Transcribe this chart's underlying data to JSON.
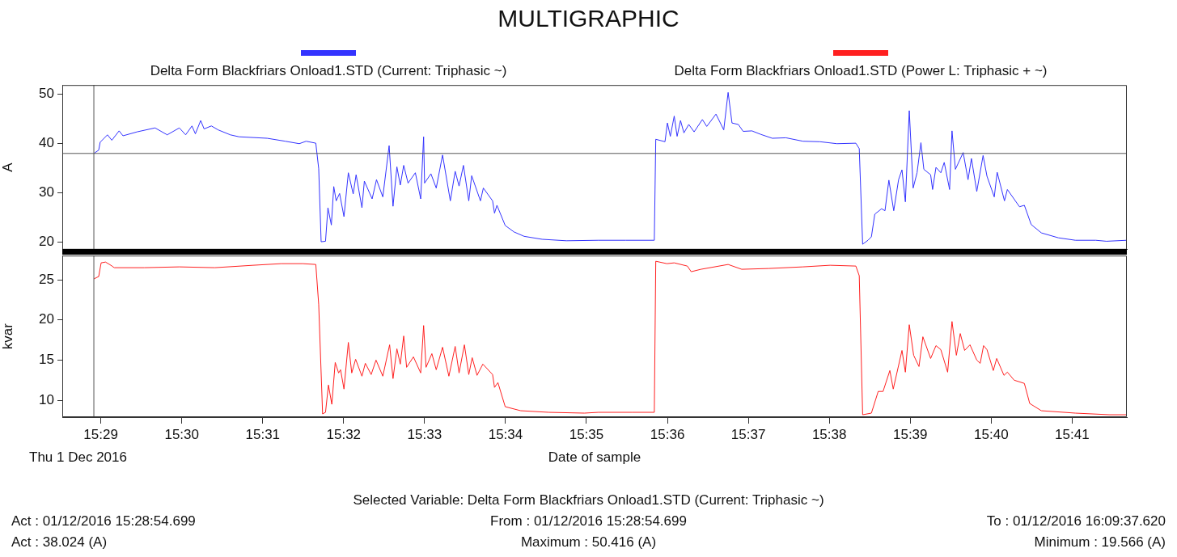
{
  "chart_data": [
    {
      "type": "line",
      "title": "MULTIGRAPHIC",
      "ylabel": "A",
      "legend": "top left",
      "tick_labels": "y",
      "xlim": [
        15.4754,
        15.6946
      ],
      "ylim": [
        18.5,
        51.9
      ],
      "yticks": [
        20,
        30,
        40,
        50
      ],
      "grid": false,
      "ref_lines": [
        {
          "axis": "y",
          "value": 38.024,
          "color": "#555555"
        },
        {
          "axis": "x",
          "value": 15.4819,
          "color": "#555555"
        }
      ],
      "series": [
        {
          "name": "Delta Form Blackfriars Onload1.STD (Current: Triphasic ~)",
          "color": "#3333ff",
          "x": [
            15.4819,
            15.4829,
            15.4832,
            15.4847,
            15.4856,
            15.4871,
            15.4879,
            15.4908,
            15.4945,
            15.497,
            15.4995,
            15.5008,
            15.5021,
            15.5028,
            15.5039,
            15.5046,
            15.5061,
            15.5075,
            15.51,
            15.5118,
            15.5176,
            15.5213,
            15.5242,
            15.5256,
            15.5276,
            15.5282,
            15.5287,
            15.5296,
            15.5301,
            15.5308,
            15.5313,
            15.5318,
            15.5325,
            15.5334,
            15.5343,
            15.5353,
            15.5359,
            15.5371,
            15.5376,
            15.5392,
            15.5401,
            15.5414,
            15.5427,
            15.5435,
            15.5443,
            15.545,
            15.5457,
            15.5466,
            15.5481,
            15.5492,
            15.5498,
            15.55,
            15.5513,
            15.5524,
            15.5537,
            15.5553,
            15.5563,
            15.5571,
            15.558,
            15.5591,
            15.5597,
            15.5615,
            15.5621,
            15.564,
            15.5644,
            15.5649,
            15.5666,
            15.5684,
            15.5705,
            15.5742,
            15.5792,
            15.5858,
            15.5914,
            15.5973,
            15.5976,
            15.5995,
            15.6,
            15.6006,
            15.6014,
            15.602,
            15.6027,
            15.6034,
            15.6044,
            15.6055,
            15.6072,
            15.6081,
            15.61,
            15.6116,
            15.6125,
            15.6133,
            15.6146,
            15.6156,
            15.6174,
            15.6192,
            15.6216,
            15.6244,
            15.6279,
            15.6314,
            15.6349,
            15.6388,
            15.6395,
            15.6402,
            15.6413,
            15.642,
            15.6427,
            15.6441,
            15.6448,
            15.6456,
            15.6466,
            15.6476,
            15.6483,
            15.649,
            15.6498,
            15.6506,
            15.6514,
            15.6522,
            15.6528,
            15.6542,
            15.6546,
            15.6553,
            15.6563,
            15.657,
            15.6581,
            15.6586,
            15.6593,
            15.6609,
            15.6619,
            15.6626,
            15.6637,
            15.665,
            15.6658,
            15.6673,
            15.6679,
            15.6694,
            15.67,
            15.6725,
            15.6735,
            15.6749,
            15.677,
            15.6805,
            15.684,
            15.6882,
            15.6904,
            15.6946
          ],
          "values": [
            38.0,
            38.7,
            40.3,
            41.8,
            40.7,
            42.6,
            41.6,
            42.4,
            43.2,
            41.8,
            43.2,
            41.8,
            43.6,
            42.0,
            44.7,
            43.0,
            43.6,
            42.8,
            41.8,
            41.4,
            41.1,
            40.5,
            40.0,
            40.5,
            40.1,
            34.9,
            20.1,
            20.2,
            27.0,
            23.5,
            31.3,
            28.4,
            29.9,
            25.2,
            34.1,
            29.8,
            33.7,
            27.0,
            32.4,
            28.8,
            32.7,
            29.2,
            39.6,
            27.3,
            35.3,
            31.6,
            35.6,
            32.0,
            34.1,
            28.8,
            41.4,
            32.0,
            33.9,
            31.0,
            37.7,
            28.4,
            34.4,
            31.4,
            35.6,
            28.4,
            33.5,
            28.4,
            31.0,
            28.4,
            25.9,
            27.5,
            23.4,
            22.1,
            21.2,
            20.6,
            20.3,
            20.4,
            20.4,
            20.4,
            40.9,
            40.4,
            44.2,
            41.5,
            45.6,
            41.5,
            44.7,
            42.2,
            43.9,
            42.4,
            44.9,
            43.5,
            46.0,
            42.8,
            50.4,
            44.2,
            43.9,
            42.5,
            42.6,
            41.9,
            41.1,
            41.2,
            40.5,
            40.4,
            40.0,
            40.1,
            39.0,
            19.6,
            20.4,
            21.1,
            25.7,
            26.8,
            26.4,
            32.6,
            26.4,
            32.7,
            34.7,
            28.2,
            46.7,
            31.0,
            34.1,
            40.2,
            34.8,
            33.7,
            30.7,
            35.2,
            34.1,
            36.2,
            30.7,
            42.6,
            34.8,
            38.2,
            32.7,
            37.0,
            30.3,
            37.6,
            33.4,
            29.2,
            34.2,
            28.4,
            30.7,
            27.2,
            27.5,
            23.6,
            21.9,
            20.9,
            20.4,
            20.4,
            20.2,
            20.4
          ]
        }
      ]
    },
    {
      "type": "line",
      "ylabel": "kvar",
      "xlabel": "Date of sample",
      "legend": "top right",
      "xlim": [
        15.4754,
        15.6946
      ],
      "ylim": [
        7.9,
        28
      ],
      "xticks": [
        {
          "value": 15.48333,
          "label": "15:29"
        },
        {
          "value": 15.5,
          "label": "15:30"
        },
        {
          "value": 15.51667,
          "label": "15:31"
        },
        {
          "value": 15.53333,
          "label": "15:32"
        },
        {
          "value": 15.55,
          "label": "15:33"
        },
        {
          "value": 15.56667,
          "label": "15:34"
        },
        {
          "value": 15.58333,
          "label": "15:35"
        },
        {
          "value": 15.6,
          "label": "15:36"
        },
        {
          "value": 15.61667,
          "label": "15:37"
        },
        {
          "value": 15.63333,
          "label": "15:38"
        },
        {
          "value": 15.65,
          "label": "15:39"
        },
        {
          "value": 15.66667,
          "label": "15:40"
        },
        {
          "value": 15.68333,
          "label": "15:41"
        }
      ],
      "yticks": [
        10,
        15,
        20,
        25
      ],
      "grid": false,
      "ref_lines": [
        {
          "axis": "x",
          "value": 15.4819,
          "color": "#555555"
        }
      ],
      "annotations": [
        "Thu 1 Dec 2016",
        "Selected Variable: Delta Form Blackfriars Onload1.STD (Current: Triphasic ~)",
        "Act : 01/12/2016 15:28:54.699",
        "From : 01/12/2016 15:28:54.699",
        "To : 01/12/2016 16:09:37.620",
        "Act : 38.024 (A)",
        "Maximum : 50.416 (A)",
        "Minimum : 19.566 (A)"
      ],
      "series": [
        {
          "name": "Delta Form Blackfriars Onload1.STD (Power L: Triphasic + ~)",
          "color": "#ff2020",
          "x": [
            15.4819,
            15.4829,
            15.4834,
            15.4843,
            15.4854,
            15.4861,
            15.4923,
            15.4995,
            15.5068,
            15.5147,
            15.5205,
            15.5249,
            15.5276,
            15.5282,
            15.529,
            15.5296,
            15.5302,
            15.5309,
            15.5316,
            15.5323,
            15.5327,
            15.5334,
            15.5343,
            15.535,
            15.5358,
            15.5371,
            15.5378,
            15.539,
            15.54,
            15.5414,
            15.5428,
            15.5435,
            15.5443,
            15.545,
            15.5457,
            15.5463,
            15.5477,
            15.5492,
            15.5498,
            15.5503,
            15.5515,
            15.5524,
            15.5537,
            15.555,
            15.5563,
            15.5571,
            15.5582,
            15.5591,
            15.5598,
            15.5608,
            15.562,
            15.564,
            15.5644,
            15.5651,
            15.5666,
            15.5698,
            15.5756,
            15.5829,
            15.5858,
            15.5928,
            15.5973,
            15.5976,
            15.5999,
            15.6014,
            15.6041,
            15.6049,
            15.6069,
            15.6125,
            15.6153,
            15.6209,
            15.6279,
            15.6335,
            15.6388,
            15.6395,
            15.6402,
            15.642,
            15.6434,
            15.6444,
            15.6458,
            15.6465,
            15.6483,
            15.649,
            15.6498,
            15.6507,
            15.6518,
            15.6526,
            15.6542,
            15.6553,
            15.6563,
            15.6577,
            15.6586,
            15.6595,
            15.6603,
            15.6612,
            15.6623,
            15.6637,
            15.6644,
            15.6651,
            15.6658,
            15.6671,
            15.6678,
            15.6693,
            15.67,
            15.6714,
            15.6735,
            15.6746,
            15.677,
            15.684,
            15.6911,
            15.6946
          ],
          "values": [
            25.1,
            25.4,
            27.1,
            27.2,
            26.8,
            26.5,
            26.5,
            26.6,
            26.5,
            26.8,
            27.0,
            27.0,
            26.9,
            21.9,
            8.3,
            8.5,
            11.9,
            9.5,
            14.7,
            13.4,
            13.8,
            11.4,
            17.2,
            13.4,
            15.1,
            13.0,
            14.6,
            13.2,
            15.0,
            13.0,
            16.9,
            12.7,
            16.4,
            14.5,
            18.0,
            14.1,
            15.4,
            13.4,
            19.3,
            14.1,
            15.8,
            13.8,
            16.6,
            13.0,
            16.7,
            13.4,
            16.9,
            13.2,
            15.3,
            13.1,
            14.5,
            13.2,
            11.6,
            12.2,
            9.2,
            8.7,
            8.5,
            8.4,
            8.5,
            8.5,
            8.5,
            27.3,
            27.0,
            27.1,
            26.7,
            26.0,
            26.3,
            26.9,
            26.3,
            26.4,
            26.6,
            26.8,
            26.7,
            25.5,
            8.2,
            8.4,
            11.1,
            11.1,
            13.7,
            11.4,
            16.2,
            13.5,
            19.4,
            15.6,
            14.2,
            17.9,
            15.2,
            16.8,
            16.3,
            13.5,
            19.8,
            15.6,
            18.3,
            16.2,
            16.9,
            15.0,
            14.6,
            16.8,
            16.3,
            13.7,
            15.2,
            13.1,
            13.5,
            12.5,
            12.1,
            9.6,
            8.7,
            8.4,
            8.2,
            8.2
          ]
        }
      ]
    }
  ]
}
